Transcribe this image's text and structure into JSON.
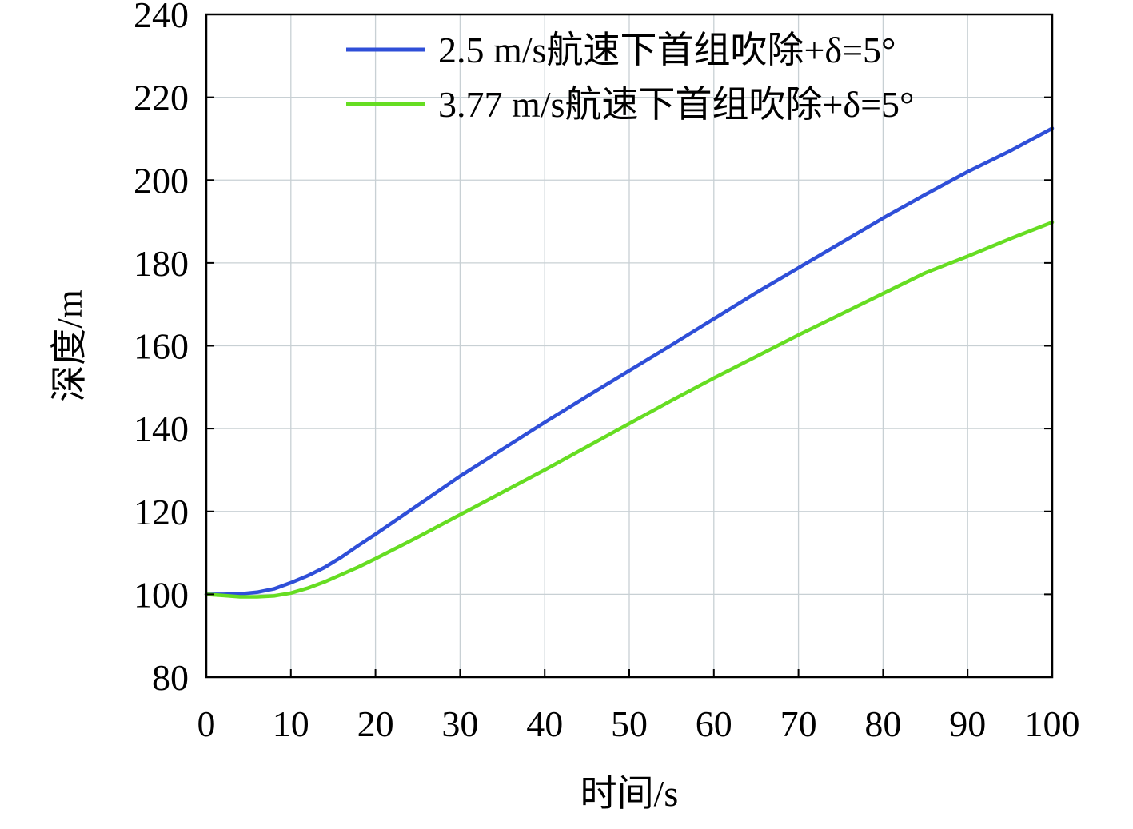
{
  "chart_data": {
    "type": "line",
    "title": "",
    "xlabel": "时间/s",
    "ylabel": "深度/m",
    "xlim": [
      0,
      100
    ],
    "ylim": [
      80,
      240
    ],
    "xticks": [
      0,
      10,
      20,
      30,
      40,
      50,
      60,
      70,
      80,
      90,
      100
    ],
    "yticks": [
      80,
      100,
      120,
      140,
      160,
      180,
      200,
      220,
      240
    ],
    "xtick_labels": [
      "0",
      "10",
      "20",
      "30",
      "40",
      "50",
      "60",
      "70",
      "80",
      "90",
      "100"
    ],
    "ytick_labels": [
      "80",
      "100",
      "120",
      "140",
      "160",
      "180",
      "200",
      "220",
      "240"
    ],
    "grid": true,
    "legend_position": "top-right",
    "series": [
      {
        "name": "2.5 m/s航速下首组吹除+δ=5°",
        "color": "#2f4fd8",
        "x": [
          0,
          2,
          4,
          6,
          8,
          10,
          12,
          14,
          16,
          18,
          20,
          25,
          30,
          35,
          40,
          45,
          50,
          55,
          60,
          65,
          70,
          75,
          80,
          85,
          90,
          95,
          100
        ],
        "y": [
          100,
          100,
          100.1,
          100.5,
          101.3,
          102.8,
          104.5,
          106.5,
          109.0,
          111.8,
          114.5,
          121.5,
          128.5,
          135.0,
          141.5,
          147.8,
          154.0,
          160.2,
          166.5,
          172.8,
          178.8,
          184.8,
          190.8,
          196.5,
          202.0,
          207.0,
          212.5
        ]
      },
      {
        "name": "3.77 m/s航速下首组吹除+δ=5°",
        "color": "#66dd22",
        "x": [
          0,
          2,
          4,
          6,
          8,
          10,
          12,
          14,
          16,
          18,
          20,
          25,
          30,
          35,
          40,
          45,
          50,
          55,
          60,
          65,
          70,
          75,
          80,
          85,
          90,
          95,
          100
        ],
        "y": [
          100,
          99.7,
          99.4,
          99.4,
          99.6,
          100.3,
          101.5,
          103.0,
          104.8,
          106.6,
          108.6,
          113.8,
          119.2,
          124.6,
          130.0,
          135.6,
          141.2,
          146.8,
          152.2,
          157.4,
          162.6,
          167.6,
          172.6,
          177.6,
          181.6,
          185.8,
          189.8
        ]
      }
    ]
  }
}
